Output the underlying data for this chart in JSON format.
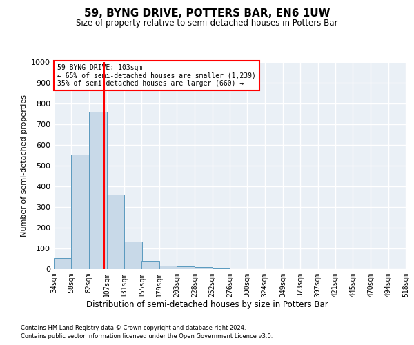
{
  "title": "59, BYNG DRIVE, POTTERS BAR, EN6 1UW",
  "subtitle": "Size of property relative to semi-detached houses in Potters Bar",
  "xlabel": "Distribution of semi-detached houses by size in Potters Bar",
  "ylabel": "Number of semi-detached properties",
  "footnote1": "Contains HM Land Registry data © Crown copyright and database right 2024.",
  "footnote2": "Contains public sector information licensed under the Open Government Licence v3.0.",
  "annotation_title": "59 BYNG DRIVE: 103sqm",
  "annotation_line1": "← 65% of semi-detached houses are smaller (1,239)",
  "annotation_line2": "35% of semi-detached houses are larger (660) →",
  "bar_color": "#c8d9e8",
  "bar_edge_color": "#5a9abf",
  "vline_color": "red",
  "vline_x": 103,
  "background_color": "#eaf0f6",
  "grid_color": "white",
  "bin_edges": [
    34,
    58,
    82,
    107,
    131,
    155,
    179,
    203,
    228,
    252,
    276,
    300,
    324,
    349,
    373,
    397,
    421,
    445,
    470,
    494,
    518
  ],
  "bar_heights": [
    55,
    555,
    760,
    360,
    133,
    40,
    18,
    13,
    10,
    5,
    0,
    0,
    0,
    0,
    0,
    0,
    0,
    0,
    0,
    0
  ],
  "ylim": [
    0,
    1000
  ],
  "yticks": [
    0,
    100,
    200,
    300,
    400,
    500,
    600,
    700,
    800,
    900,
    1000
  ]
}
